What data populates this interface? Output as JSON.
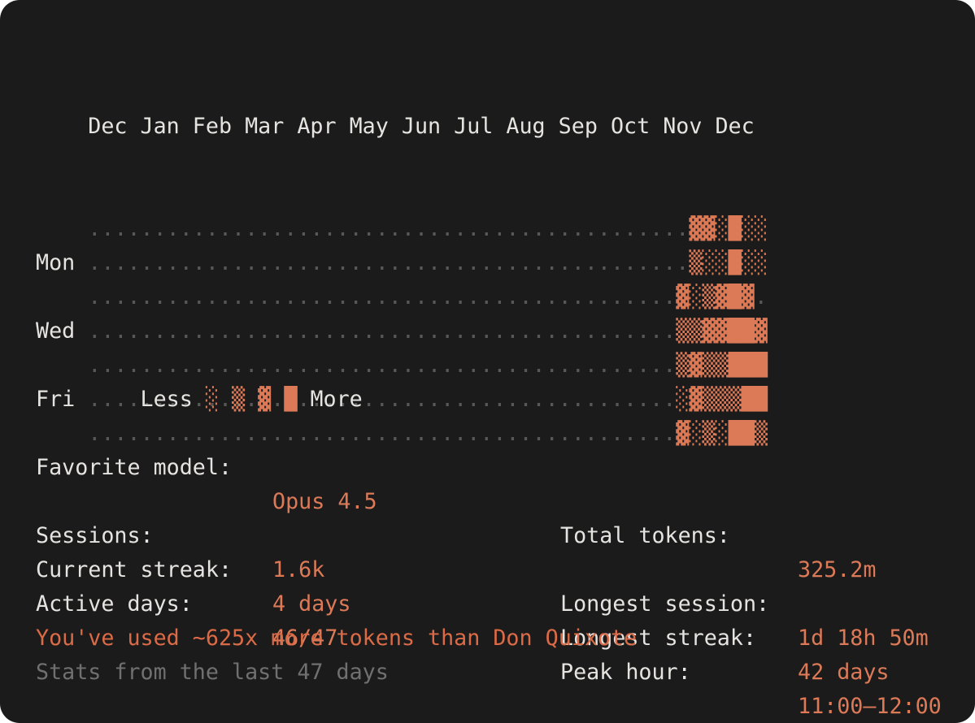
{
  "colors": {
    "background": "#1b1b1b",
    "text": "#e6e4e1",
    "grid_dot": "#585858",
    "accent": "#dc7a58",
    "highlight": "#db6b46",
    "muted": "#707070"
  },
  "heatmap": {
    "months_header": "Dec Jan Feb Mar Apr May Jun Jul Aug Sep Oct Nov Dec",
    "rows": [
      {
        "label": "",
        "leading_dots": 46,
        "blocks": "▓▓░█░░",
        "trailing_dots": 0
      },
      {
        "label": "Mon",
        "leading_dots": 46,
        "blocks": "▒░░█░░",
        "trailing_dots": 0
      },
      {
        "label": "",
        "leading_dots": 45,
        "blocks": "▓░▒▓█▓",
        "trailing_dots": 1
      },
      {
        "label": "Wed",
        "leading_dots": 45,
        "blocks": "▒▒▓▓██▓",
        "trailing_dots": 0
      },
      {
        "label": "",
        "leading_dots": 45,
        "blocks": "▒▓▒▒███",
        "trailing_dots": 0
      },
      {
        "label": "Fri",
        "leading_dots": 45,
        "blocks": "░▓▒▒▒██",
        "trailing_dots": 0
      },
      {
        "label": "",
        "leading_dots": 45,
        "blocks": "▓░▒░██▒",
        "trailing_dots": 0
      }
    ]
  },
  "legend": {
    "less_label": "Less",
    "more_label": "More",
    "levels": [
      "░",
      "▒",
      "▓",
      "█"
    ]
  },
  "stats": {
    "rows": [
      {
        "left_label": "Favorite model:",
        "left_value": "Opus 4.5",
        "right_label": "Total tokens:",
        "right_value": "325.2m"
      },
      {
        "left_label": "Sessions:",
        "left_value": "1.6k",
        "right_label": "Longest session:",
        "right_value": "1d 18h 50m"
      },
      {
        "left_label": "Current streak:",
        "left_value": "4 days",
        "right_label": "Longest streak:",
        "right_value": "42 days"
      },
      {
        "left_label": "Active days:",
        "left_value": "46/47",
        "right_label": "Peak hour:",
        "right_value": "11:00–12:00"
      }
    ]
  },
  "footer": {
    "comparison": "You've used ~625x more tokens than Don Quixote",
    "note": "Stats from the last 47 days"
  }
}
